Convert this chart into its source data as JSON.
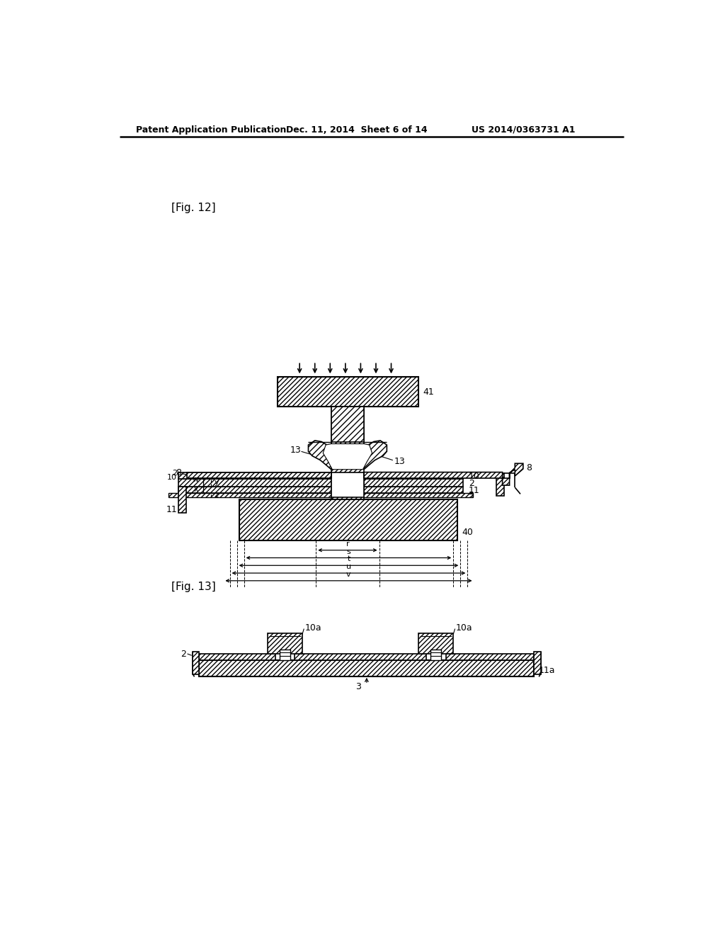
{
  "header_left": "Patent Application Publication",
  "header_mid": "Dec. 11, 2014  Sheet 6 of 14",
  "header_right": "US 2014/0363731 A1",
  "fig12_label": "[Fig. 12]",
  "fig13_label": "[Fig. 13]"
}
